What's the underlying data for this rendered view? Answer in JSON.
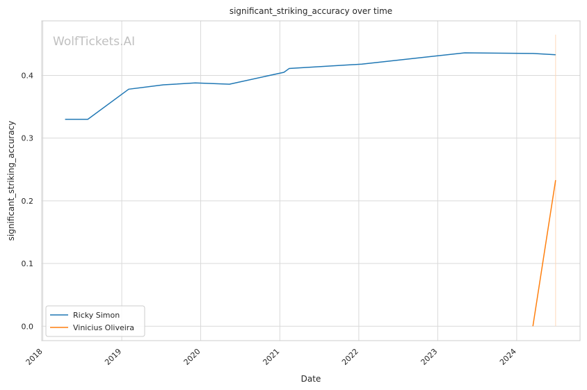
{
  "chart_data": {
    "type": "line",
    "title": "significant_striking_accuracy over time",
    "xlabel": "Date",
    "ylabel": "significant_striking_accuracy",
    "watermark": "WolfTickets.AI",
    "x_ticks": [
      "2018",
      "2019",
      "2020",
      "2021",
      "2022",
      "2023",
      "2024"
    ],
    "y_ticks": [
      "0.0",
      "0.1",
      "0.2",
      "0.3",
      "0.4"
    ],
    "xlim": [
      "2017-12-27",
      "2024-10-20"
    ],
    "ylim": [
      -0.023,
      0.487
    ],
    "grid": true,
    "legend_position": "lower-left",
    "series": [
      {
        "name": "Ricky Simon",
        "color": "#1f77b4",
        "points": [
          {
            "x": "2018-04-14",
            "y": 0.33
          },
          {
            "x": "2018-07-28",
            "y": 0.33
          },
          {
            "x": "2019-02-02",
            "y": 0.378
          },
          {
            "x": "2019-07-13",
            "y": 0.385
          },
          {
            "x": "2019-12-07",
            "y": 0.388
          },
          {
            "x": "2020-05-13",
            "y": 0.386
          },
          {
            "x": "2021-01-20",
            "y": 0.405
          },
          {
            "x": "2021-02-13",
            "y": 0.411
          },
          {
            "x": "2022-01-15",
            "y": 0.418
          },
          {
            "x": "2023-05-06",
            "y": 0.436
          },
          {
            "x": "2024-03-16",
            "y": 0.435
          },
          {
            "x": "2024-06-29",
            "y": 0.433
          }
        ]
      },
      {
        "name": "Vinicius Oliveira",
        "color": "#ff7f0e",
        "points": [
          {
            "x": "2024-03-16",
            "y": 0.0
          },
          {
            "x": "2024-06-29",
            "y": 0.233
          }
        ]
      }
    ],
    "annotations": [
      {
        "type": "vline",
        "x": "2024-06-29",
        "y_range": [
          0.0,
          0.465
        ],
        "color": "#ffd9b8"
      }
    ]
  }
}
